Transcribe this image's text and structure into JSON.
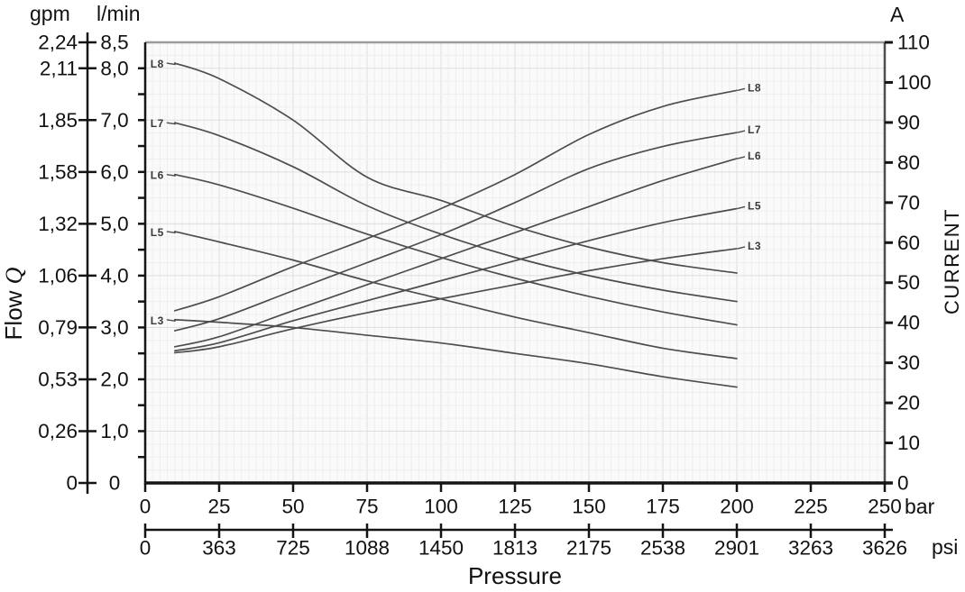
{
  "figure": {
    "left_axis": {
      "unit_primary": "gpm",
      "unit_secondary": "l/min",
      "title_word": "Flow",
      "title_symbol": "Q",
      "ticks": [
        {
          "lmin": 8.5,
          "lmin_label": "8,5",
          "gpm_label": "2,24"
        },
        {
          "lmin": 8.0,
          "lmin_label": "8,0",
          "gpm_label": "2,11"
        },
        {
          "lmin": 7.0,
          "lmin_label": "7,0",
          "gpm_label": "1,85"
        },
        {
          "lmin": 6.0,
          "lmin_label": "6,0",
          "gpm_label": "1,58"
        },
        {
          "lmin": 5.0,
          "lmin_label": "5,0",
          "gpm_label": "1,32"
        },
        {
          "lmin": 4.0,
          "lmin_label": "4,0",
          "gpm_label": "1,06"
        },
        {
          "lmin": 3.0,
          "lmin_label": "3,0",
          "gpm_label": "0,79"
        },
        {
          "lmin": 2.0,
          "lmin_label": "2,0",
          "gpm_label": "0,53"
        },
        {
          "lmin": 1.0,
          "lmin_label": "1,0",
          "gpm_label": "0,26"
        },
        {
          "lmin": 0.0,
          "lmin_label": "0",
          "gpm_label": "0"
        }
      ]
    },
    "right_axis": {
      "unit": "A",
      "title": "CURRENT",
      "ticks": [
        {
          "a": 110,
          "label": "110"
        },
        {
          "a": 100,
          "label": "100"
        },
        {
          "a": 90,
          "label": "90"
        },
        {
          "a": 80,
          "label": "80"
        },
        {
          "a": 70,
          "label": "70"
        },
        {
          "a": 60,
          "label": "60"
        },
        {
          "a": 50,
          "label": "50"
        },
        {
          "a": 40,
          "label": "40"
        },
        {
          "a": 30,
          "label": "30"
        },
        {
          "a": 20,
          "label": "20"
        },
        {
          "a": 10,
          "label": "10"
        },
        {
          "a": 0,
          "label": "0"
        }
      ]
    },
    "x_axis": {
      "title": "Pressure",
      "unit_primary": "bar",
      "unit_secondary": "psi",
      "ticks": [
        {
          "bar": 0,
          "bar_label": "0",
          "psi_label": "0"
        },
        {
          "bar": 25,
          "bar_label": "25",
          "psi_label": "363"
        },
        {
          "bar": 50,
          "bar_label": "50",
          "psi_label": "725"
        },
        {
          "bar": 75,
          "bar_label": "75",
          "psi_label": "1088"
        },
        {
          "bar": 100,
          "bar_label": "100",
          "psi_label": "1450"
        },
        {
          "bar": 125,
          "bar_label": "125",
          "psi_label": "1813"
        },
        {
          "bar": 150,
          "bar_label": "150",
          "psi_label": "2175"
        },
        {
          "bar": 175,
          "bar_label": "175",
          "psi_label": "2538"
        },
        {
          "bar": 200,
          "bar_label": "200",
          "psi_label": "2901"
        },
        {
          "bar": 225,
          "bar_label": "225",
          "psi_label": "3263"
        },
        {
          "bar": 250,
          "bar_label": "250",
          "psi_label": "3626"
        }
      ]
    },
    "colors": {
      "curve": "#4d4d4d",
      "axis": "#141414",
      "top_border": "#9b9b9b",
      "right_border": "#4e4e4e",
      "grid_minor": "#efeef2",
      "grid_major": "#dedde2",
      "plot_bg": "#fafafa",
      "curve_label": "#3a3a3a"
    }
  },
  "chart_data": {
    "type": "line",
    "title": "",
    "xlabel": "Pressure",
    "x_units": [
      "bar",
      "psi"
    ],
    "ylabel_left": "Flow Q (gpm, l/min)",
    "ylabel_right": "CURRENT (A)",
    "xlim_bar": [
      0,
      250
    ],
    "ylim_lmin": [
      0,
      8.5
    ],
    "ylim_a": [
      0,
      110
    ],
    "grid": true,
    "legend_position": "inline-curve-labels",
    "x_bar": [
      10,
      25,
      50,
      75,
      100,
      125,
      150,
      175,
      200
    ],
    "series": [
      {
        "name": "L8",
        "quantity": "flow",
        "unit": "l/min",
        "label_side": "left",
        "values": [
          8.1,
          7.8,
          7.0,
          5.9,
          5.45,
          4.95,
          4.55,
          4.25,
          4.05
        ]
      },
      {
        "name": "L7",
        "quantity": "flow",
        "unit": "l/min",
        "label_side": "left",
        "values": [
          6.95,
          6.7,
          6.1,
          5.35,
          4.8,
          4.35,
          4.0,
          3.72,
          3.5
        ]
      },
      {
        "name": "L6",
        "quantity": "flow",
        "unit": "l/min",
        "label_side": "left",
        "values": [
          5.95,
          5.75,
          5.3,
          4.8,
          4.35,
          3.95,
          3.6,
          3.3,
          3.05
        ]
      },
      {
        "name": "L5",
        "quantity": "flow",
        "unit": "l/min",
        "label_side": "left",
        "values": [
          4.85,
          4.65,
          4.3,
          3.9,
          3.55,
          3.2,
          2.9,
          2.6,
          2.4
        ]
      },
      {
        "name": "L3",
        "quantity": "flow",
        "unit": "l/min",
        "label_side": "left",
        "values": [
          3.15,
          3.1,
          3.0,
          2.85,
          2.7,
          2.5,
          2.3,
          2.05,
          1.85
        ]
      },
      {
        "name": "L8",
        "quantity": "current",
        "unit": "A",
        "label_side": "right",
        "values": [
          43,
          46.5,
          54,
          61,
          68.5,
          77,
          87,
          94,
          98
        ]
      },
      {
        "name": "L7",
        "quantity": "current",
        "unit": "A",
        "label_side": "right",
        "values": [
          38,
          41,
          48,
          55,
          62,
          70,
          78.5,
          84,
          87.5
        ]
      },
      {
        "name": "L6",
        "quantity": "current",
        "unit": "A",
        "label_side": "right",
        "values": [
          34,
          36.5,
          43,
          49.5,
          56,
          62.5,
          69,
          75.5,
          81
        ]
      },
      {
        "name": "L5",
        "quantity": "current",
        "unit": "A",
        "label_side": "right",
        "values": [
          33,
          35,
          40.5,
          45.5,
          50.5,
          55.5,
          60.5,
          65,
          68.5
        ]
      },
      {
        "name": "L3",
        "quantity": "current",
        "unit": "A",
        "label_side": "right",
        "values": [
          32.5,
          34,
          38.5,
          42.5,
          46,
          49.5,
          53,
          56,
          58.5
        ]
      }
    ]
  }
}
